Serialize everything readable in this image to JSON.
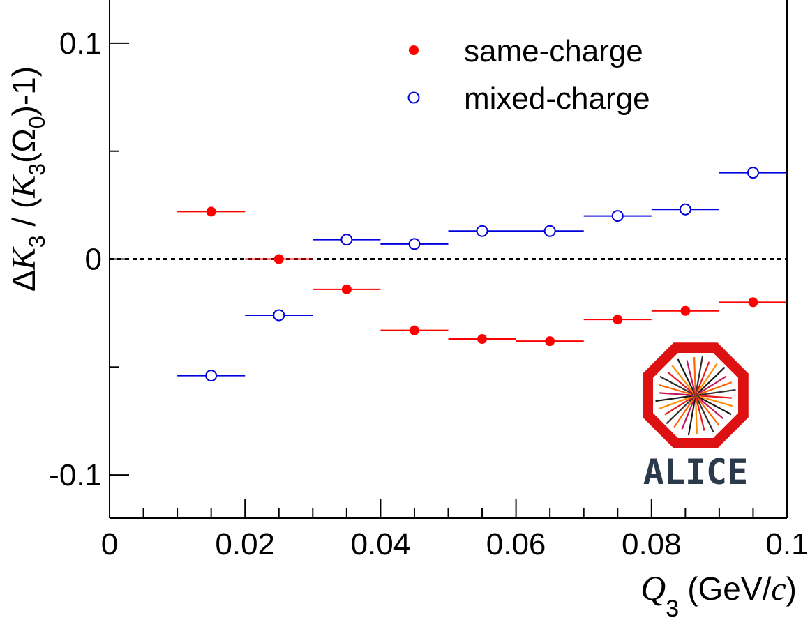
{
  "chart_data": {
    "type": "scatter",
    "x_unit_label": "(GeV/",
    "x_unit_c": "c",
    "x_unit_close": ")",
    "xlabel_main": "Q",
    "xlabel_sub": "3",
    "ylabel_parts": {
      "delta": "Δ",
      "k1": "K",
      "k1_sub": "3",
      "slash": " / (",
      "k2": "K",
      "k2_sub": "3",
      "omega": "(Ω",
      "omega_sub": "0",
      "tail": ")-1)"
    },
    "xlim": [
      0,
      0.1
    ],
    "ylim": [
      -0.12,
      0.12
    ],
    "x_ticks": [
      0,
      0.02,
      0.04,
      0.06,
      0.08,
      0.1
    ],
    "x_tick_labels": [
      "0",
      "0.02",
      "0.04",
      "0.06",
      "0.08",
      "0.1"
    ],
    "y_ticks": [
      -0.1,
      0,
      0.1
    ],
    "y_tick_labels": [
      "-0.1",
      "0",
      "0.1"
    ],
    "reference_line": 0,
    "bin_width": 0.01,
    "series": [
      {
        "name": "same-charge",
        "marker": "filled-circle",
        "color": "#ff0000",
        "x": [
          0.015,
          0.025,
          0.035,
          0.045,
          0.055,
          0.065,
          0.075,
          0.085,
          0.095
        ],
        "y": [
          0.022,
          0.0,
          -0.014,
          -0.033,
          -0.037,
          -0.038,
          -0.028,
          -0.024,
          -0.02
        ]
      },
      {
        "name": "mixed-charge",
        "marker": "open-circle",
        "color": "#0000dd",
        "x": [
          0.015,
          0.025,
          0.035,
          0.045,
          0.055,
          0.065,
          0.075,
          0.085,
          0.095
        ],
        "y": [
          -0.054,
          -0.026,
          0.009,
          0.007,
          0.013,
          0.013,
          0.02,
          0.023,
          0.04
        ]
      }
    ],
    "legend_position": "top-right"
  },
  "logo": {
    "text": "ALICE",
    "ring_color": "#dd1111",
    "text_color": "#2b3a4a"
  }
}
